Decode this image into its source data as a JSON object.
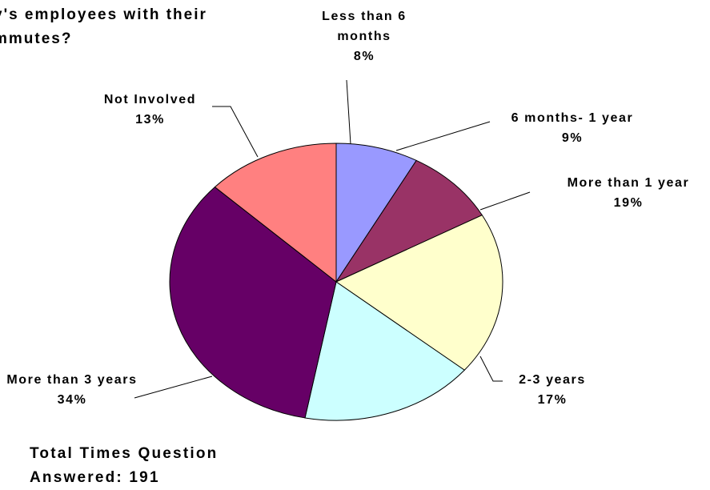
{
  "chart_data": {
    "type": "pie",
    "title_lines": [
      "y's employees with their",
      "mmutes?"
    ],
    "categories": [
      "Less than 6 months",
      "6 months- 1 year",
      "More than 1 year",
      "2-3 years",
      "More than 3 years",
      "Not Involved"
    ],
    "values": [
      8,
      9,
      19,
      17,
      34,
      13
    ],
    "value_labels": [
      "8%",
      "9%",
      "19%",
      "17%",
      "34%",
      "13%"
    ],
    "colors": [
      "#9999ff",
      "#993366",
      "#ffffcc",
      "#ccffff",
      "#660066",
      "#ff8080"
    ],
    "note": "Total Times Question Answered: 191"
  }
}
